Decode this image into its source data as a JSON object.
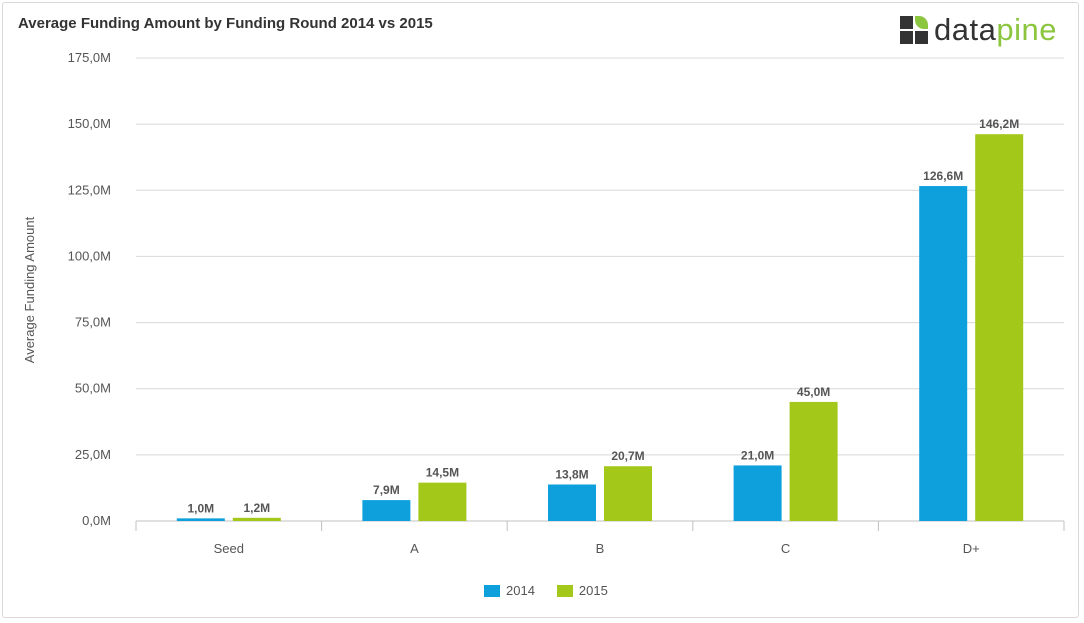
{
  "title": "Average Funding Amount by Funding Round 2014 vs 2015",
  "logo": {
    "part1": "data",
    "part2": "pine"
  },
  "chart_data": {
    "type": "bar",
    "title": "Average Funding Amount by Funding Round 2014 vs 2015",
    "xlabel": "",
    "ylabel": "Average Funding Amount",
    "categories": [
      "Seed",
      "A",
      "B",
      "C",
      "D+"
    ],
    "series": [
      {
        "name": "2014",
        "color": "#0ea0dc",
        "values": [
          1.0,
          7.9,
          13.8,
          21.0,
          126.6
        ],
        "labels": [
          "1,0M",
          "7,9M",
          "13,8M",
          "21,0M",
          "126,6M"
        ]
      },
      {
        "name": "2015",
        "color": "#a3c81a",
        "values": [
          1.2,
          14.5,
          20.7,
          45.0,
          146.2
        ],
        "labels": [
          "1,2M",
          "14,5M",
          "20,7M",
          "45,0M",
          "146,2M"
        ]
      }
    ],
    "ylim": [
      0,
      175
    ],
    "yticks": [
      0,
      25,
      50,
      75,
      100,
      125,
      150,
      175
    ],
    "ytick_labels": [
      "0,0M",
      "25,0M",
      "50,0M",
      "75,0M",
      "100,0M",
      "125,0M",
      "150,0M",
      "175,0M"
    ],
    "grid": true,
    "legend": "bottom"
  }
}
